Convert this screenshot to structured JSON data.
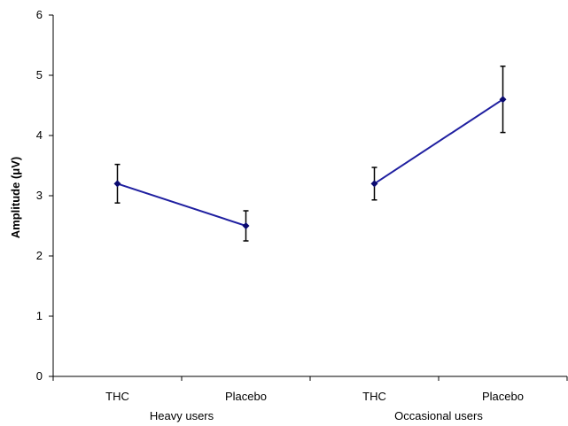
{
  "chart_data": {
    "type": "line",
    "title": "",
    "xlabel": "",
    "ylabel": "Amplitude (μV)",
    "ylim": [
      0,
      6
    ],
    "yticks": [
      0,
      1,
      2,
      3,
      4,
      5,
      6
    ],
    "grid": false,
    "legend": "none",
    "line_color": "#1F1FA0",
    "marker_color": "#0A0A70",
    "categories": [
      "THC",
      "Placebo",
      "THC",
      "Placebo"
    ],
    "groups": [
      {
        "label": "Heavy users",
        "categories": [
          "THC",
          "Placebo"
        ]
      },
      {
        "label": "Occasional users",
        "categories": [
          "THC",
          "Placebo"
        ]
      }
    ],
    "series": [
      {
        "group": "Heavy users",
        "points": [
          {
            "category": "THC",
            "value": 3.2,
            "err_low": 2.88,
            "err_high": 3.52
          },
          {
            "category": "Placebo",
            "value": 2.5,
            "err_low": 2.25,
            "err_high": 2.75
          }
        ]
      },
      {
        "group": "Occasional users",
        "points": [
          {
            "category": "THC",
            "value": 3.2,
            "err_low": 2.93,
            "err_high": 3.47
          },
          {
            "category": "Placebo",
            "value": 4.6,
            "err_low": 4.05,
            "err_high": 5.15
          }
        ]
      }
    ]
  }
}
